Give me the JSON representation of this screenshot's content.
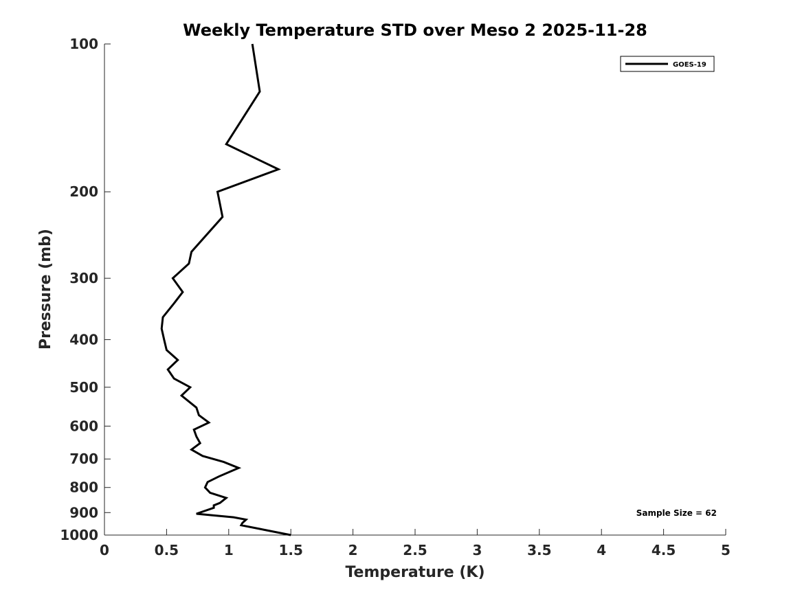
{
  "chart_data": {
    "type": "line",
    "title": "Weekly Temperature STD over Meso 2 2025-11-28",
    "xlabel": "Temperature (K)",
    "ylabel": "Pressure (mb)",
    "xlim": [
      0,
      5
    ],
    "ylim": [
      100,
      1000
    ],
    "y_scale": "log",
    "y_direction": "reversed",
    "x_ticks": [
      "0",
      "0.5",
      "1",
      "1.5",
      "2",
      "2.5",
      "3",
      "3.5",
      "4",
      "4.5",
      "5"
    ],
    "y_ticks": [
      "100",
      "200",
      "300",
      "400",
      "500",
      "600",
      "700",
      "800",
      "900",
      "1000"
    ],
    "grid": false,
    "legend_position": "top-right",
    "annotation": "Sample Size = 62",
    "line_color": "#000000",
    "series": [
      {
        "name": "GOES-19",
        "points": [
          [
            1.19,
            100
          ],
          [
            1.25,
            125
          ],
          [
            0.98,
            160
          ],
          [
            1.4,
            180
          ],
          [
            0.91,
            200
          ],
          [
            0.95,
            225
          ],
          [
            0.7,
            265
          ],
          [
            0.68,
            280
          ],
          [
            0.55,
            300
          ],
          [
            0.63,
            320
          ],
          [
            0.55,
            340
          ],
          [
            0.47,
            360
          ],
          [
            0.46,
            380
          ],
          [
            0.48,
            400
          ],
          [
            0.5,
            420
          ],
          [
            0.59,
            440
          ],
          [
            0.51,
            460
          ],
          [
            0.56,
            480
          ],
          [
            0.69,
            500
          ],
          [
            0.62,
            520
          ],
          [
            0.74,
            550
          ],
          [
            0.76,
            570
          ],
          [
            0.84,
            590
          ],
          [
            0.72,
            610
          ],
          [
            0.74,
            630
          ],
          [
            0.77,
            650
          ],
          [
            0.7,
            670
          ],
          [
            0.79,
            690
          ],
          [
            0.96,
            710
          ],
          [
            1.08,
            730
          ],
          [
            0.92,
            760
          ],
          [
            0.83,
            780
          ],
          [
            0.81,
            800
          ],
          [
            0.85,
            820
          ],
          [
            0.98,
            840
          ],
          [
            0.93,
            860
          ],
          [
            0.88,
            870
          ],
          [
            0.88,
            880
          ],
          [
            0.74,
            905
          ],
          [
            1.04,
            920
          ],
          [
            1.14,
            930
          ],
          [
            1.11,
            945
          ],
          [
            1.1,
            955
          ],
          [
            1.28,
            975
          ],
          [
            1.5,
            1000
          ]
        ]
      }
    ]
  }
}
